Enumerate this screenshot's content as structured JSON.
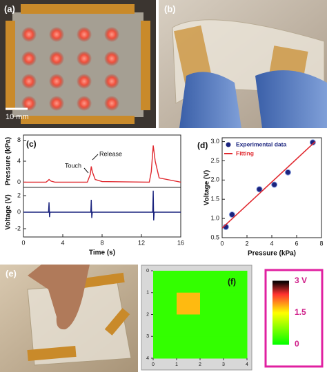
{
  "panel_labels": {
    "a": "(a)",
    "b": "(b)",
    "c": "(c)",
    "d": "(d)",
    "e": "(e)",
    "f": "(f)"
  },
  "scale_bar": "10 mm",
  "chart_data": [
    {
      "type": "line",
      "ylabel": "Pressure (kPa)",
      "xlim": [
        0,
        16
      ],
      "ylim": [
        -1,
        9
      ],
      "yticks": [
        0,
        4,
        8
      ],
      "color": "#e0282e",
      "x": [
        0,
        2.3,
        2.5,
        2.6,
        2.8,
        3.2,
        6.5,
        6.8,
        6.9,
        7.0,
        7.3,
        8,
        12.8,
        13.0,
        13.2,
        13.4,
        13.8,
        16
      ],
      "values": [
        0,
        0,
        0.3,
        0.5,
        0.2,
        0,
        0,
        1.5,
        3,
        2,
        0.5,
        0.1,
        0,
        2,
        7,
        4,
        0.8,
        0
      ],
      "annotations": [
        "Touch",
        "Release"
      ]
    },
    {
      "type": "line",
      "ylabel": "Voltage (V)",
      "xlabel": "Time (s)",
      "xlim": [
        0,
        16
      ],
      "xticks": [
        0,
        4,
        8,
        12,
        16
      ],
      "ylim": [
        -3,
        3
      ],
      "yticks": [
        -2,
        0,
        2
      ],
      "color": "#1a237e",
      "x": [
        0,
        2.55,
        2.6,
        2.65,
        2.7,
        6.85,
        6.9,
        6.95,
        7.0,
        13.15,
        13.2,
        13.25,
        13.3,
        16
      ],
      "values": [
        0,
        0,
        1.2,
        -0.6,
        0,
        0,
        1.5,
        -0.7,
        0,
        0,
        2.6,
        -1.0,
        0,
        0
      ]
    },
    {
      "type": "scatter",
      "xlabel": "Pressure (kPa)",
      "ylabel": "Voltage (V)",
      "xlim": [
        0,
        8
      ],
      "xticks": [
        0,
        2,
        4,
        6,
        8
      ],
      "ylim": [
        0.5,
        3.1
      ],
      "yticks": [
        0.5,
        {
          "value": 1,
          "label": "1.0"
        },
        1.5,
        {
          "value": 2,
          "label": "2.0"
        },
        2.5,
        {
          "value": 3,
          "label": "3.0"
        }
      ],
      "legend": "upper left",
      "series": [
        {
          "name": "Experimental data",
          "color": "#1a237e",
          "mode": "markers",
          "x": [
            0.3,
            0.8,
            3.0,
            4.2,
            5.3,
            7.3
          ],
          "values": [
            0.78,
            1.1,
            1.76,
            1.88,
            2.2,
            2.98
          ]
        },
        {
          "name": "Fitting",
          "color": "#e0282e",
          "mode": "line",
          "x": [
            0,
            7.5
          ],
          "values": [
            0.75,
            3.0
          ]
        }
      ]
    },
    {
      "type": "heatmap",
      "xlim": [
        0,
        4
      ],
      "xticks": [
        0,
        1,
        2,
        3,
        4
      ],
      "ylim": [
        0,
        4
      ],
      "yticks": [
        0,
        1,
        2,
        3,
        4
      ],
      "y_inverted": true,
      "values": [
        [
          0.3,
          0.3,
          0.3,
          0.3
        ],
        [
          0.3,
          1.8,
          0.3,
          0.3
        ],
        [
          0.3,
          0.3,
          0.3,
          0.3
        ],
        [
          0.3,
          0.3,
          0.3,
          0.3
        ]
      ],
      "colorscale": [
        [
          0,
          "#00ff00"
        ],
        [
          1.5,
          "#ffff00"
        ],
        [
          2.4,
          "#ff3030"
        ],
        [
          3,
          "#000000"
        ]
      ],
      "colorbar_ticks": [
        {
          "value": 3,
          "label": "3 V"
        },
        1.5,
        0
      ]
    }
  ]
}
